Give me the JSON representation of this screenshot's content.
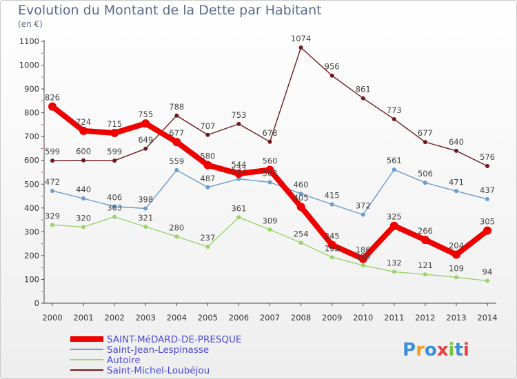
{
  "header": {
    "title": "Evolution du Montant de la Dette par Habitant",
    "subtitle": "(en €)"
  },
  "logo": {
    "text": "Proxiti",
    "icon": "proxiti-logo"
  },
  "chart_data": {
    "type": "line",
    "x": [
      2000,
      2001,
      2002,
      2003,
      2004,
      2005,
      2006,
      2007,
      2008,
      2009,
      2010,
      2011,
      2012,
      2013,
      2014
    ],
    "ylim": [
      0,
      1100
    ],
    "yticks": [
      0,
      100,
      200,
      300,
      400,
      500,
      600,
      700,
      800,
      900,
      1000,
      1100
    ],
    "grid": false,
    "legend_position": "bottom-left",
    "series": [
      {
        "name": "Saint-Michel-Loubéjou",
        "color": "#6b1a1a",
        "width": 1.4,
        "marker": 3,
        "values": [
          599,
          600,
          599,
          649,
          788,
          707,
          753,
          678,
          1074,
          956,
          861,
          773,
          677,
          640,
          576
        ]
      },
      {
        "name": "Saint-Jean-Lespinasse",
        "color": "#6a9ccc",
        "width": 1.4,
        "marker": 3,
        "values": [
          472,
          440,
          406,
          398,
          559,
          487,
          522,
          508,
          460,
          415,
          372,
          561,
          506,
          471,
          437
        ]
      },
      {
        "name": "Autoire",
        "color": "#99d36a",
        "width": 1.4,
        "marker": 3,
        "values": [
          329,
          320,
          363,
          321,
          280,
          237,
          361,
          309,
          254,
          193,
          159,
          132,
          121,
          109,
          94
        ]
      },
      {
        "name": "SAINT-MéDARD-DE-PRESQUE",
        "color": "#ee0000",
        "width": 8,
        "marker": 6,
        "values": [
          826,
          724,
          715,
          755,
          677,
          580,
          544,
          560,
          405,
          245,
          186,
          325,
          266,
          204,
          305
        ]
      }
    ],
    "legend_order": [
      3,
      1,
      2,
      0
    ]
  }
}
